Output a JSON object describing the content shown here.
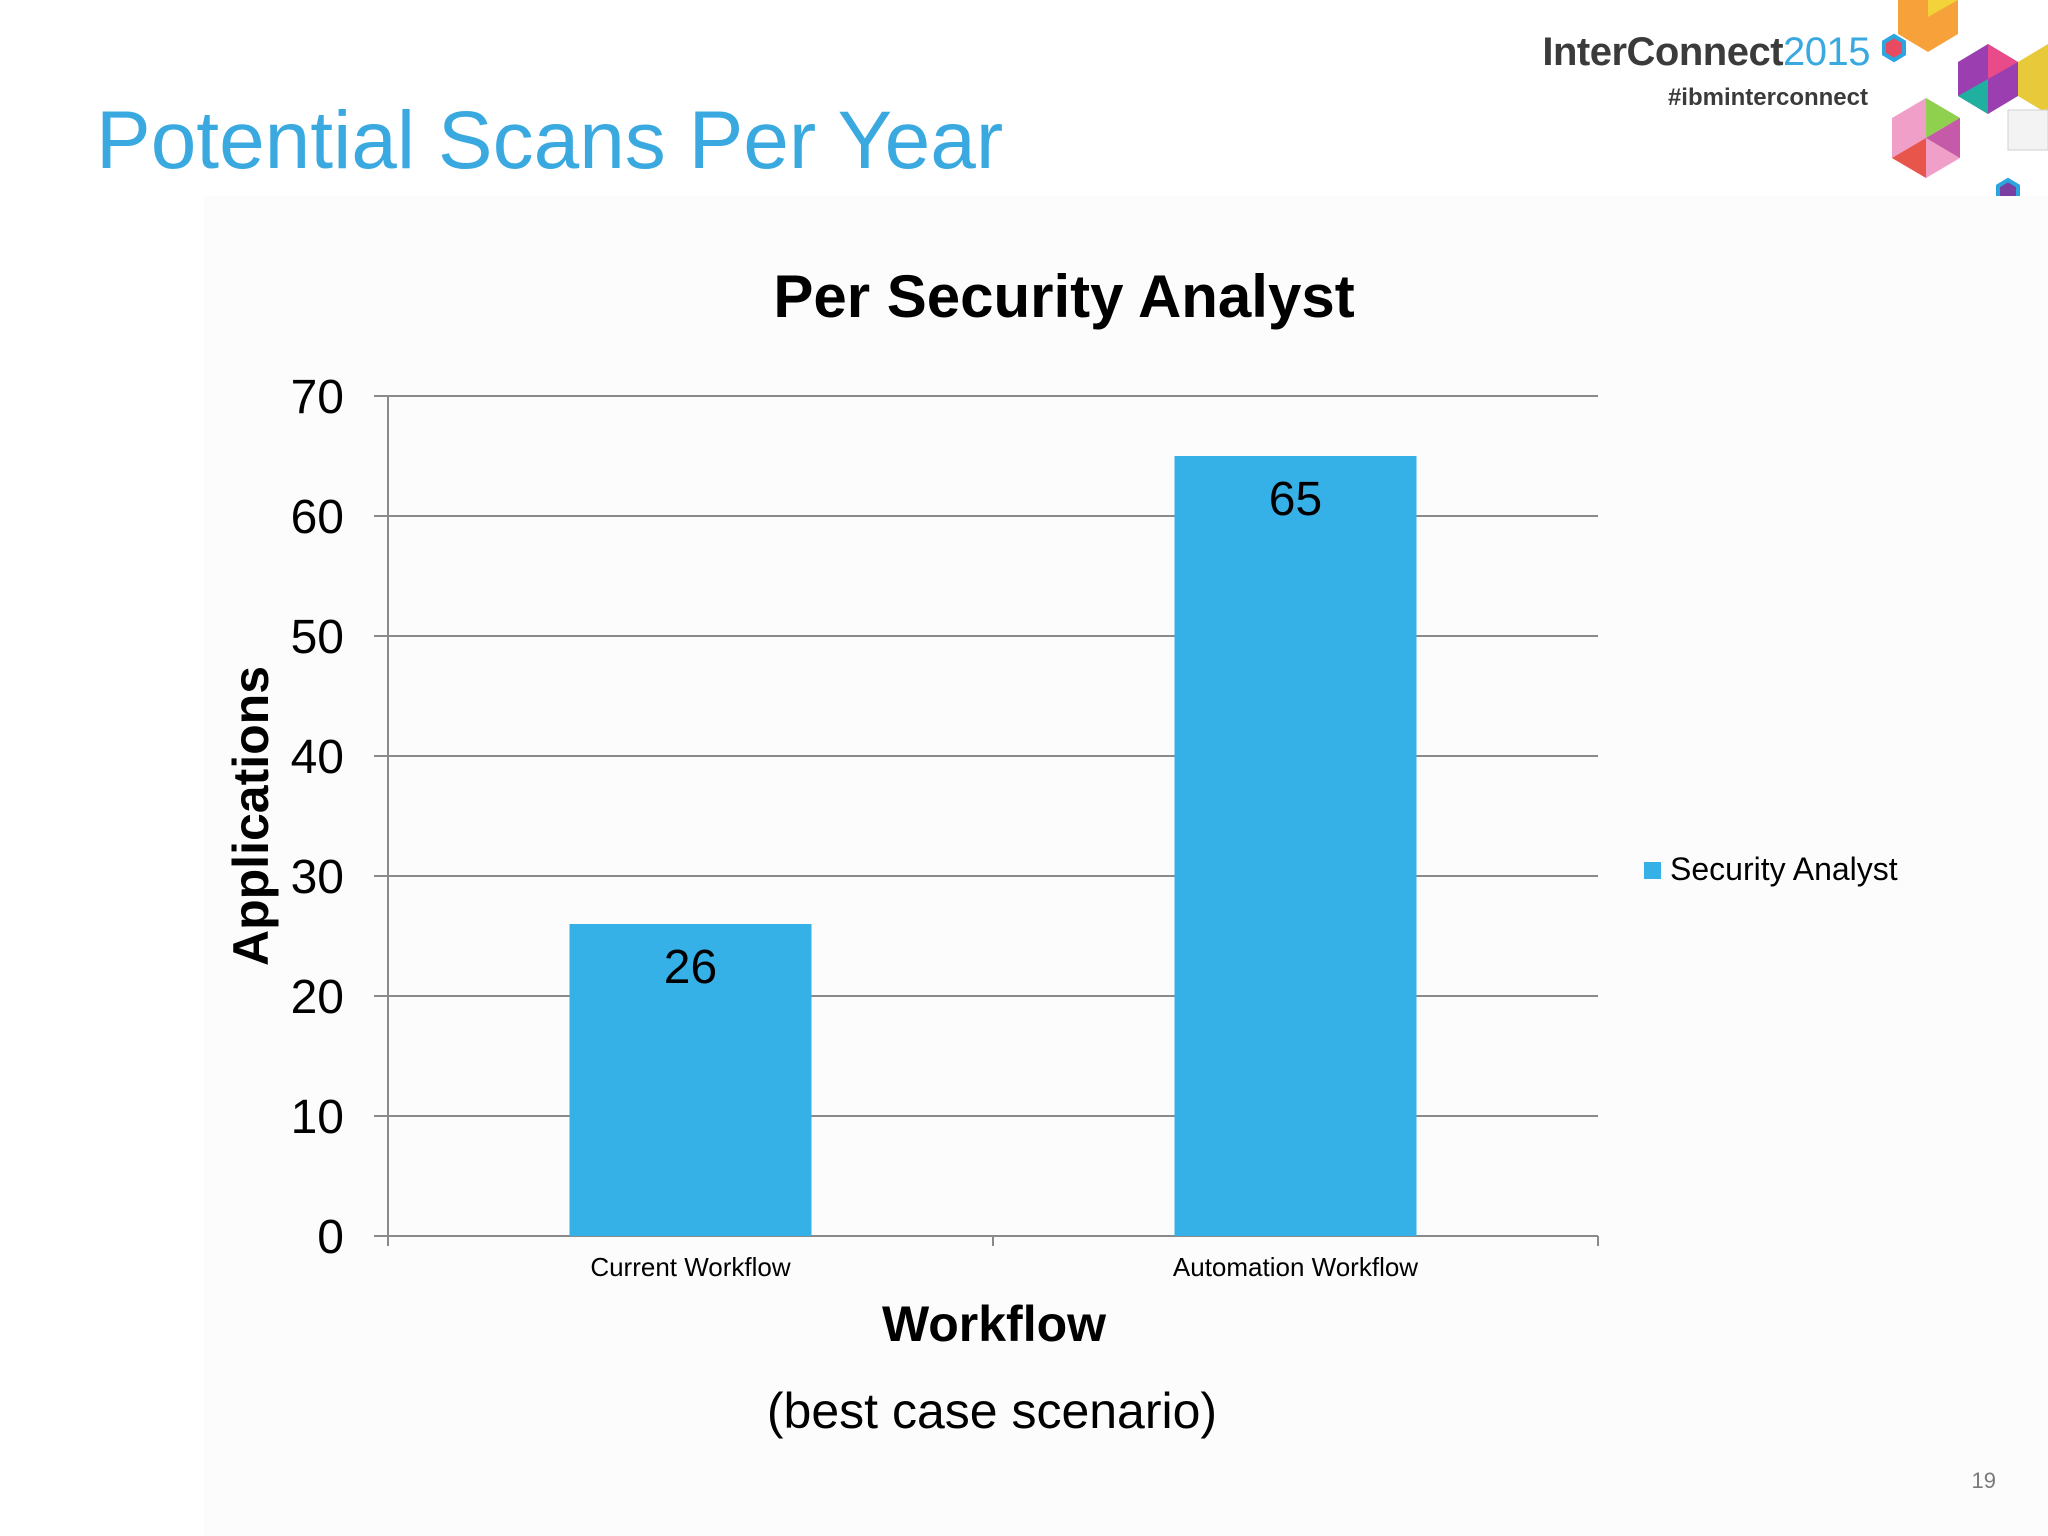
{
  "slide": {
    "title": "Potential Scans Per Year",
    "page_number": "19"
  },
  "brand": {
    "name": "InterConnect",
    "year": "2015",
    "hashtag": "#ibminterconnect"
  },
  "chart_data": {
    "type": "bar",
    "title": "Per Security Analyst",
    "xlabel": "Workflow",
    "ylabel": "Applications",
    "subtitle_below": "(best case scenario)",
    "categories": [
      "Current Workflow",
      "Automation Workflow"
    ],
    "series": [
      {
        "name": "Security Analyst",
        "values": [
          26,
          65
        ],
        "color": "#36b1e8"
      }
    ],
    "ylim": [
      0,
      70
    ],
    "yticks": [
      0,
      10,
      20,
      30,
      40,
      50,
      60,
      70
    ],
    "grid": true,
    "legend_position": "right",
    "data_labels": true
  }
}
